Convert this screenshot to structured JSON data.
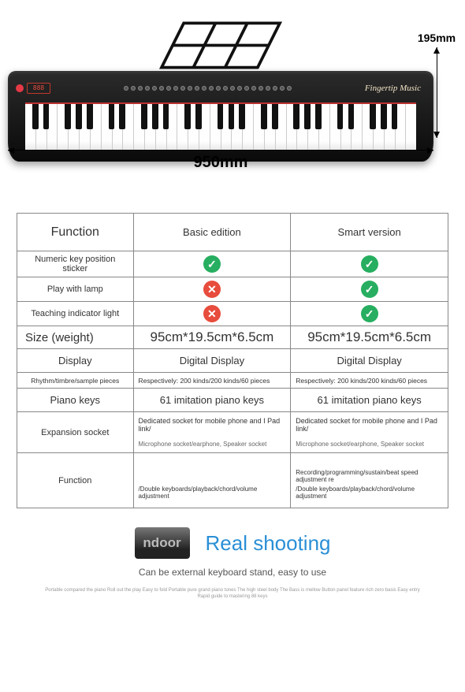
{
  "keyboard": {
    "brand": "Fingertip Music",
    "led": "888",
    "white_keys": 36,
    "black_pattern": [
      1,
      1,
      0,
      1,
      1,
      1,
      0
    ]
  },
  "dimensions": {
    "width_label": "950mm",
    "height_label": "195mm"
  },
  "table": {
    "header": {
      "label": "Function",
      "col1": "Basic edition",
      "col2": "Smart version"
    },
    "rows": [
      {
        "cls": "fn",
        "label": "Numeric key position sticker",
        "c1_icon": "check",
        "c2_icon": "check"
      },
      {
        "cls": "fn",
        "label": "Play with lamp",
        "c1_icon": "cross",
        "c2_icon": "check"
      },
      {
        "cls": "fn",
        "label": "Teaching indicator light",
        "c1_icon": "cross",
        "c2_icon": "check"
      },
      {
        "cls": "size",
        "label": "Size (weight)",
        "c1": "95cm*19.5cm*6.5cm",
        "c2": "95cm*19.5cm*6.5cm"
      },
      {
        "cls": "disp",
        "label": "Display",
        "c1": "Digital Display",
        "c2": "Digital Display"
      },
      {
        "cls": "small",
        "label": "Rhythm/timbre/sample pieces",
        "c1": "Respectively: 200 kinds/200 kinds/60 pieces",
        "c2": "Respectively: 200 kinds/200 kinds/60 pieces"
      },
      {
        "cls": "disp",
        "label": "Piano keys",
        "c1": "61 imitation piano keys",
        "c2": "61 imitation piano keys"
      },
      {
        "cls": "exp",
        "label": "Expansion socket",
        "c1": "Dedicated socket for mobile phone and I Pad link/",
        "c1_sub": "Microphone socket/earphone, Speaker socket",
        "c2": "Dedicated socket for mobile phone and I Pad link/",
        "c2_sub": "Microphone socket/earphone, Speaker socket"
      },
      {
        "cls": "func",
        "label": "Function",
        "c1_line1": "",
        "c1_line2": "/Double keyboards/playback/chord/volume adjustment",
        "c2_line1": "Recording/programming/sustain/beat speed adjustment re",
        "c2_line2": "/Double keyboards/playback/chord/volume adjustment"
      }
    ]
  },
  "bottom": {
    "indoor": "ndoor",
    "real": "Real shooting",
    "sub": "Can be external keyboard stand, easy to use",
    "fine": "Portable compared the piano Roll out the play Easy to fold Portable pure grand piano tones The high steel body The Bass is mellow Button panel feature rich zero basis Easy entry Rapid guide to mastering 88 keys"
  },
  "colors": {
    "check": "#27ae60",
    "cross": "#e74c3c",
    "link": "#2a8fd6",
    "border": "#888888"
  }
}
